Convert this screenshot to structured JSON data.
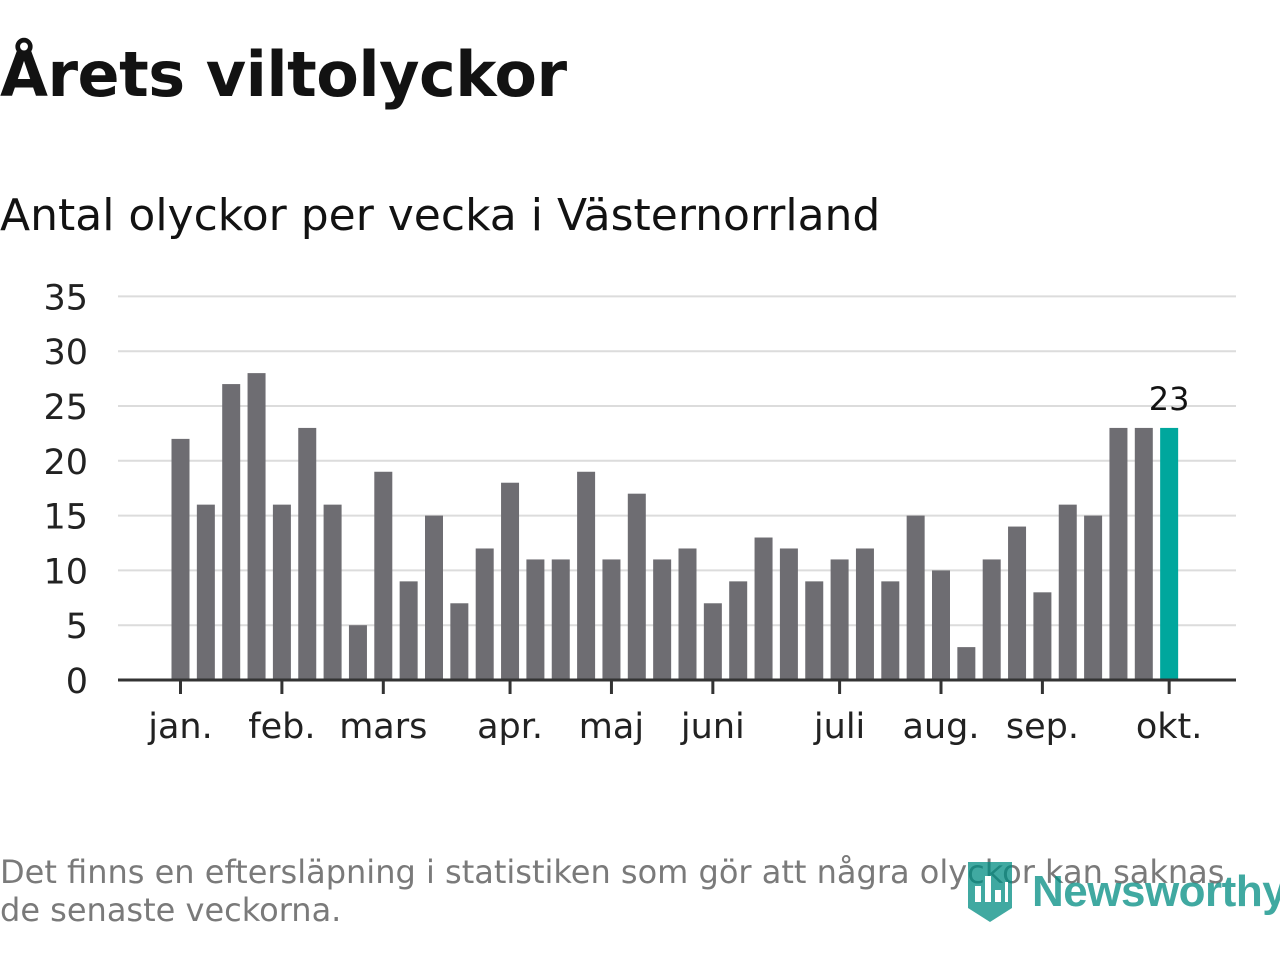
{
  "title": "Årets viltolyckor",
  "subtitle": "Antal olyckor per vecka i Västernorrland",
  "footnote": "Det finns en eftersläpning i statistiken som gör att några olyckor kan saknas de senaste veckorna.",
  "brand": {
    "logo_text": "Newsworthy"
  },
  "colors": {
    "bar": "#6e6d72",
    "highlight": "#00a79d",
    "grid": "#dcdcdc",
    "axis": "#333333"
  },
  "chart_data": {
    "type": "bar",
    "ylabel": "",
    "xlabel": "",
    "ylim": [
      0,
      35
    ],
    "yticks": [
      0,
      5,
      10,
      15,
      20,
      25,
      30,
      35
    ],
    "values": [
      22,
      16,
      27,
      28,
      16,
      23,
      16,
      5,
      19,
      9,
      15,
      7,
      12,
      18,
      11,
      11,
      19,
      11,
      17,
      11,
      12,
      7,
      9,
      13,
      12,
      9,
      11,
      12,
      9,
      15,
      10,
      3,
      11,
      14,
      8,
      16,
      15,
      23,
      23,
      23
    ],
    "highlight_index": 39,
    "highlight_label": "23",
    "month_ticks": [
      {
        "label": "jan.",
        "week_position": 0
      },
      {
        "label": "feb.",
        "week_position": 4
      },
      {
        "label": "mars",
        "week_position": 8
      },
      {
        "label": "apr.",
        "week_position": 13
      },
      {
        "label": "maj",
        "week_position": 17
      },
      {
        "label": "juni",
        "week_position": 21
      },
      {
        "label": "juli",
        "week_position": 26
      },
      {
        "label": "aug.",
        "week_position": 30
      },
      {
        "label": "sep.",
        "week_position": 34
      },
      {
        "label": "okt.",
        "week_position": 39
      }
    ]
  }
}
